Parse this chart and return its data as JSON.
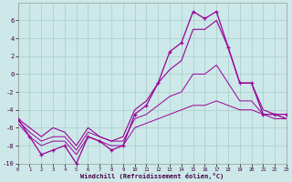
{
  "background_color": "#cce8e8",
  "grid_color": "#aacccc",
  "line_color": "#990099",
  "xlim": [
    0,
    23
  ],
  "ylim": [
    -10,
    8
  ],
  "xticks": [
    0,
    1,
    2,
    3,
    4,
    5,
    6,
    7,
    8,
    9,
    10,
    11,
    12,
    13,
    14,
    15,
    16,
    17,
    18,
    19,
    20,
    21,
    22,
    23
  ],
  "yticks": [
    -10,
    -8,
    -6,
    -4,
    -2,
    0,
    2,
    4,
    6
  ],
  "xlabel": "Windchill (Refroidissement éolien,°C)",
  "x": [
    0,
    1,
    2,
    3,
    4,
    5,
    6,
    7,
    8,
    9,
    10,
    11,
    12,
    13,
    14,
    15,
    16,
    17,
    18,
    19,
    20,
    21,
    22,
    23
  ],
  "line_main_y": [
    -5,
    -7,
    -9,
    -8.5,
    -8,
    -10,
    -7,
    -7.5,
    -8.5,
    -8,
    -4.5,
    -3.5,
    -1,
    2.5,
    3.5,
    7,
    6.2,
    7,
    3,
    -1,
    -1,
    -4.5,
    -4.5,
    -4.5
  ],
  "line_upper_y": [
    -5,
    -6,
    -7,
    -6,
    -6.5,
    -8,
    -6,
    -7,
    -7.5,
    -7,
    -4,
    -3,
    -1,
    0.5,
    1.5,
    5,
    5,
    6,
    3,
    -1,
    -1,
    -4,
    -4.5,
    -5
  ],
  "line_mid_y": [
    -5.2,
    -6.5,
    -7.5,
    -7,
    -7,
    -8.5,
    -6.5,
    -7,
    -7.5,
    -7.5,
    -5,
    -4.5,
    -3.5,
    -2.5,
    -2,
    0,
    0,
    1,
    -1,
    -3,
    -3,
    -4.5,
    -4.5,
    -5
  ],
  "line_lower_y": [
    -5.5,
    -7,
    -8,
    -7.5,
    -7.5,
    -9,
    -7,
    -7.5,
    -8,
    -8,
    -6,
    -5.5,
    -5,
    -4.5,
    -4,
    -3.5,
    -3.5,
    -3,
    -3.5,
    -4,
    -4,
    -4.5,
    -5,
    -5
  ]
}
